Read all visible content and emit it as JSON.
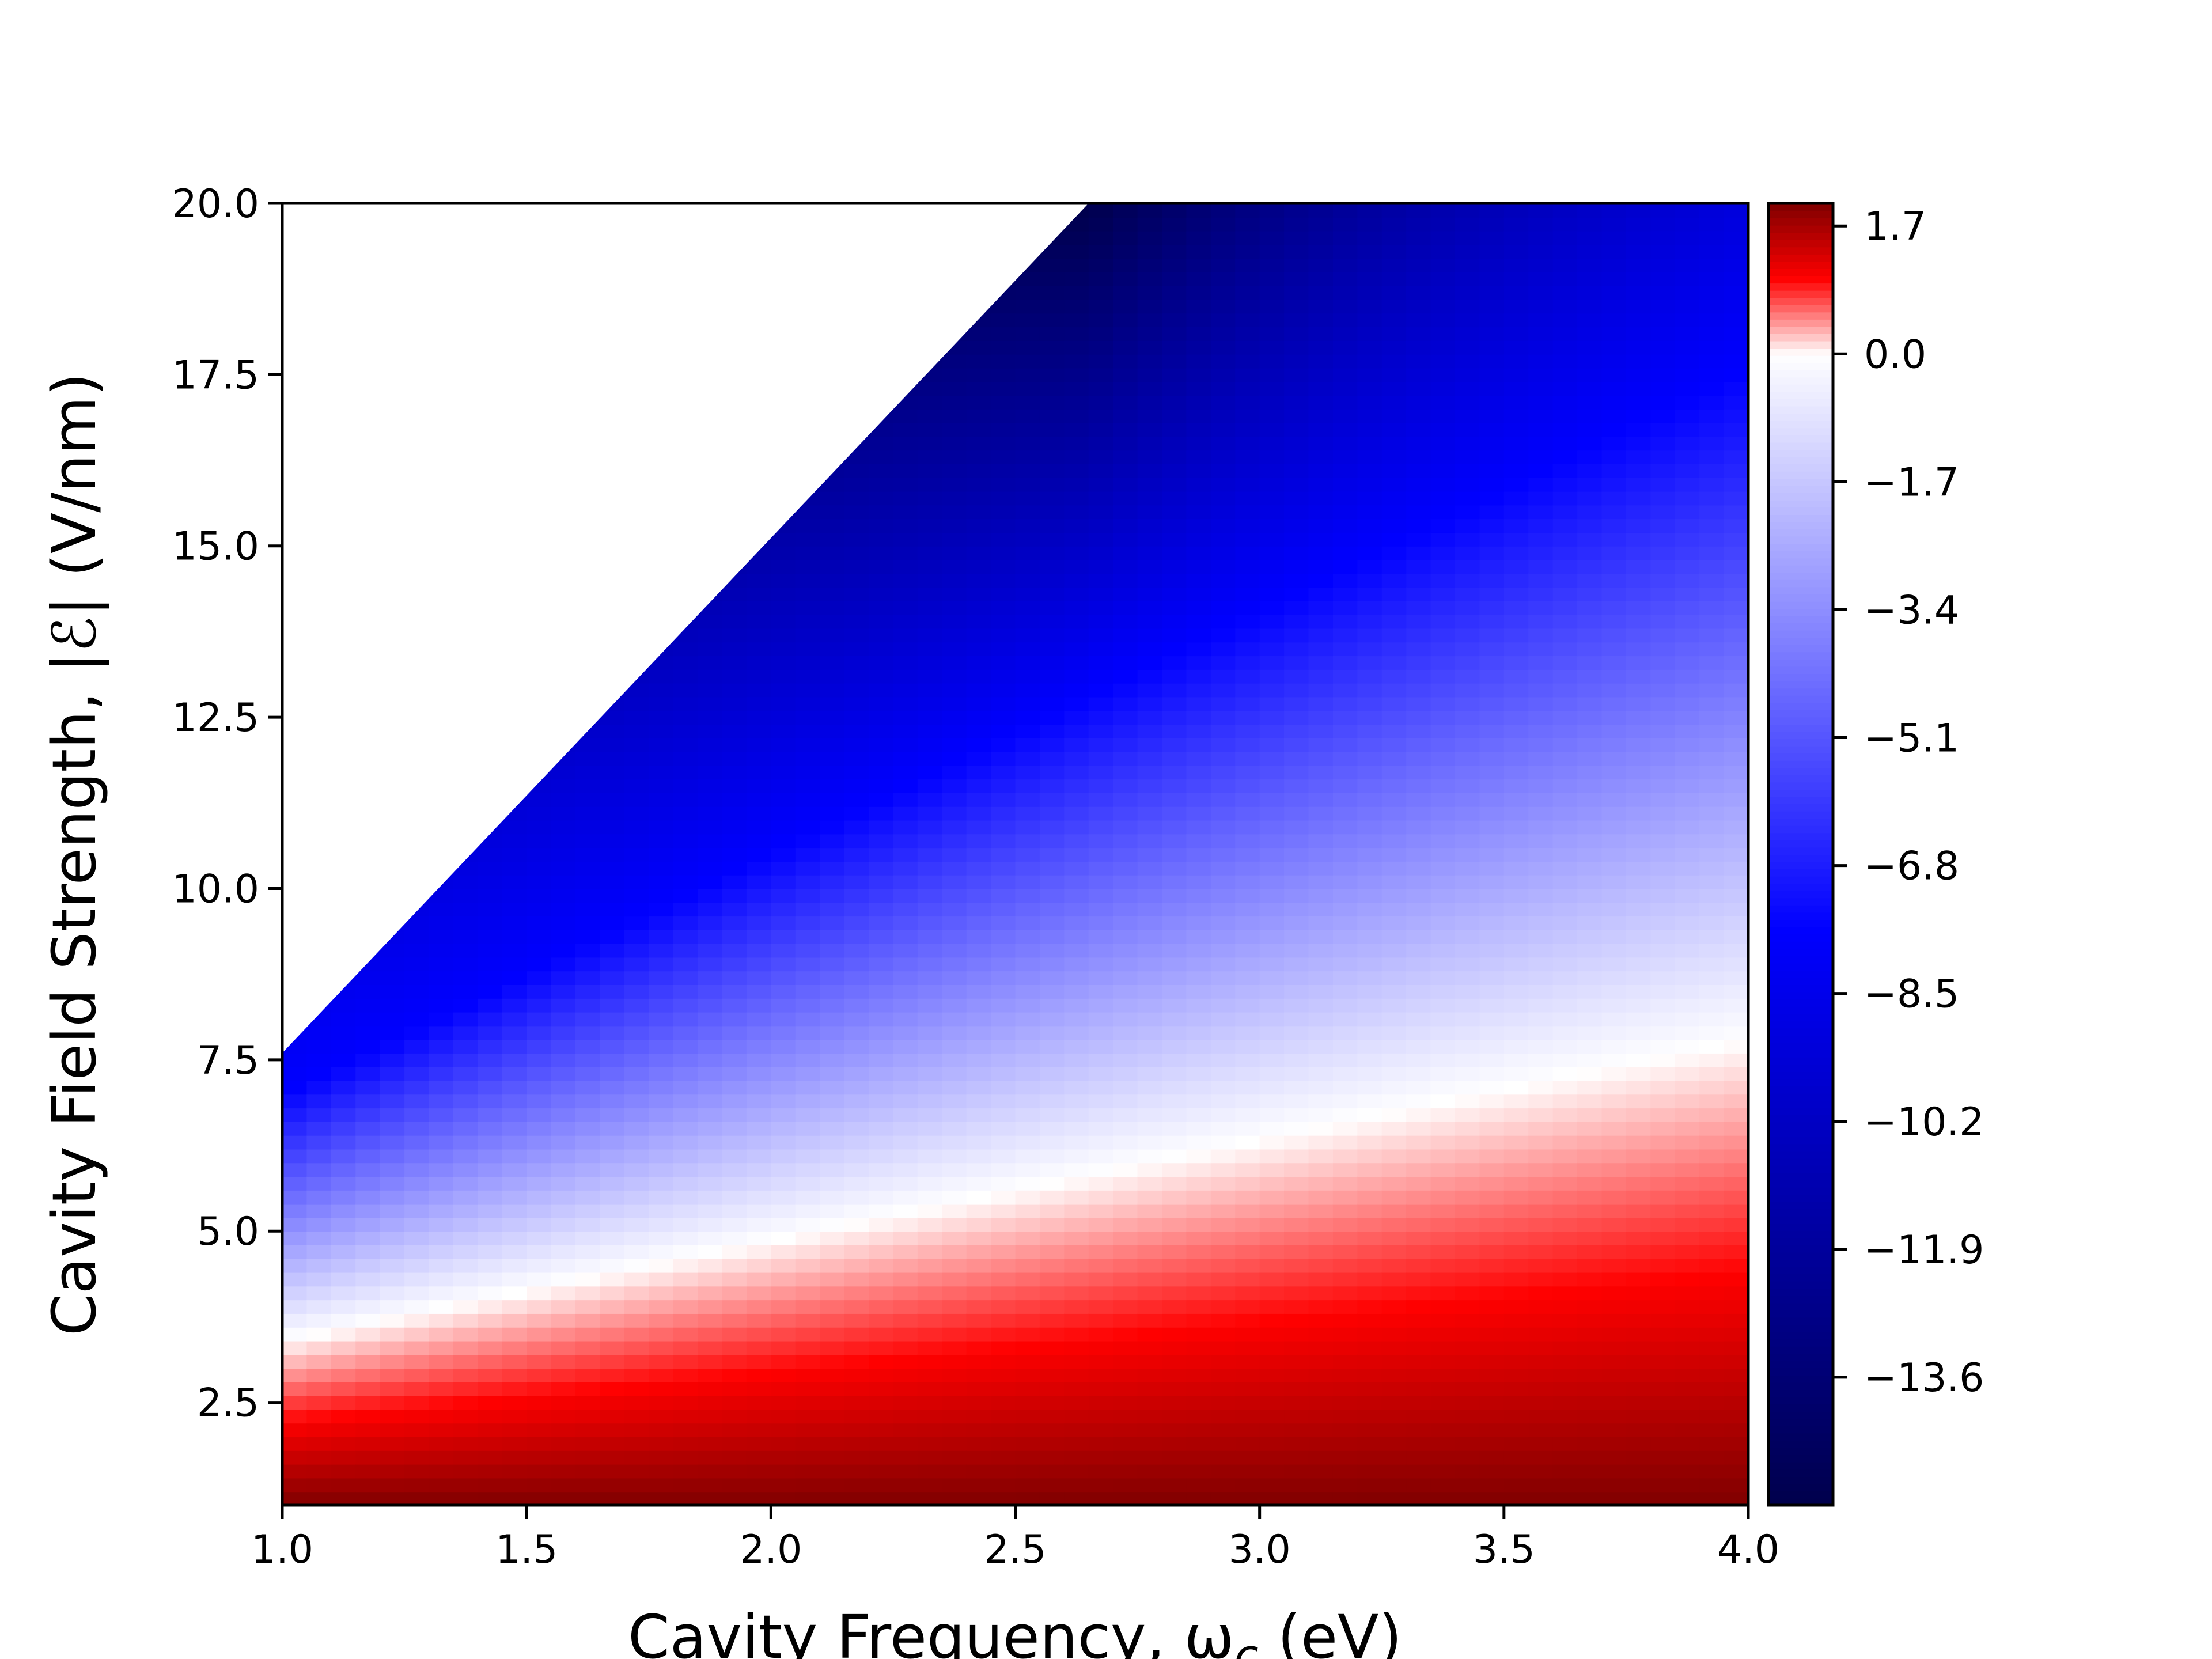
{
  "chart_data": {
    "type": "heatmap",
    "title": "",
    "xlabel": "Cavity Frequency, ω",
    "xlabel_sub": "c",
    "xlabel_unit": " (eV)",
    "ylabel": "Cavity Field Strength, |ℰ| (V/nm)",
    "xlim": [
      1.0,
      4.0
    ],
    "ylim": [
      1.0,
      20.0
    ],
    "x_ticks": [
      "1.0",
      "1.5",
      "2.0",
      "2.5",
      "3.0",
      "3.5",
      "4.0"
    ],
    "x_tick_values": [
      1.0,
      1.5,
      2.0,
      2.5,
      3.0,
      3.5,
      4.0
    ],
    "y_ticks": [
      "2.5",
      "5.0",
      "7.5",
      "10.0",
      "12.5",
      "15.0",
      "17.5",
      "20.0"
    ],
    "y_tick_values": [
      2.5,
      5.0,
      7.5,
      10.0,
      12.5,
      15.0,
      17.5,
      20.0
    ],
    "colorbar": {
      "range": [
        -15.3,
        2.0
      ],
      "ticks": [
        "1.7",
        "0.0",
        "−1.7",
        "−3.4",
        "−5.1",
        "−6.8",
        "−8.5",
        "−10.2",
        "−11.9",
        "−13.6"
      ],
      "tick_values": [
        1.7,
        0.0,
        -1.7,
        -3.4,
        -5.1,
        -6.8,
        -8.5,
        -10.2,
        -11.9,
        -13.6
      ],
      "colormap": "seismic",
      "colors": {
        "max": "#800000",
        "positive": "#ff0000",
        "zero": "#ffffff",
        "negative": "#0000ff",
        "min": "#00004c"
      }
    },
    "zero_contour": {
      "x": [
        1.0,
        4.0
      ],
      "y": [
        3.4,
        7.8
      ]
    },
    "undefined_region_boundary": {
      "x": [
        1.0,
        2.65
      ],
      "y": [
        7.6,
        20.0
      ]
    },
    "blue_ridge": {
      "x": [
        1.0,
        4.0
      ],
      "y": [
        7.0,
        17.6
      ]
    },
    "undefined_region_color": "#ffffff"
  }
}
